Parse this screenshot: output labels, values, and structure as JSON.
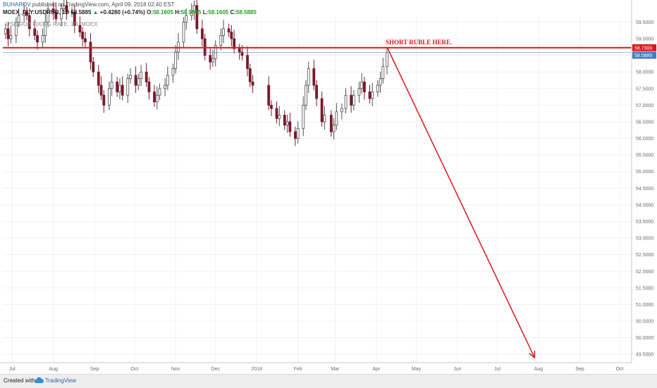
{
  "header": {
    "author": "BUHAROV",
    "published": "published on TradingView.com, April 09, 2018 02:40 EST"
  },
  "legend": {
    "symbol": "MOEX_DLY:USDRUB, 1D",
    "last": "58.5885",
    "change": "+0.4280 (+0.74%)",
    "o_label": "O:",
    "o": "58.1605",
    "h_label": "H:",
    "h": "58.5885",
    "l_label": "L:",
    "l": "58.1605",
    "c_label": "C:",
    "c": "58.5885"
  },
  "watermark": "USD/RUB FIXING RATE, 1D, MOEX",
  "footer": {
    "created": "Created with",
    "brand": "TradingView"
  },
  "chart_data": {
    "type": "candlestick",
    "ylim": [
      49.25,
      59.7
    ],
    "y_ticks": [
      "59.5000",
      "59.0000",
      "58.5000",
      "58.0000",
      "57.5000",
      "57.0000",
      "56.5000",
      "56.0000",
      "55.5000",
      "55.0000",
      "54.5000",
      "54.0000",
      "53.5000",
      "53.0000",
      "52.5000",
      "52.0000",
      "51.5000",
      "51.0000",
      "50.5000",
      "50.0000",
      "49.5000"
    ],
    "y_tick_values": [
      59.5,
      59.0,
      58.5,
      58.0,
      57.5,
      57.0,
      56.5,
      56.0,
      55.5,
      55.0,
      54.5,
      54.0,
      53.5,
      53.0,
      52.5,
      52.0,
      51.5,
      51.0,
      50.5,
      50.0,
      49.5
    ],
    "x_ticks": [
      "Jul",
      "Aug",
      "Sep",
      "Oct",
      "Nov",
      "Dec",
      "2018",
      "Feb",
      "Mar",
      "Apr",
      "May",
      "Jun",
      "Jul",
      "Aug",
      "Sep",
      "Oct"
    ],
    "x_tick_dates": [
      "2017-07-01",
      "2017-08-01",
      "2017-09-01",
      "2017-10-01",
      "2017-11-01",
      "2017-12-01",
      "2018-01-01",
      "2018-02-01",
      "2018-03-01",
      "2018-04-01",
      "2018-05-01",
      "2018-06-01",
      "2018-07-01",
      "2018-08-01",
      "2018-09-01",
      "2018-10-01"
    ],
    "x_range": [
      "2017-06-24",
      "2018-10-10"
    ],
    "closes": [
      [
        "2017-06-26",
        59.3
      ],
      [
        "2017-06-28",
        59.0
      ],
      [
        "2017-06-30",
        59.1
      ],
      [
        "2017-07-04",
        59.5
      ],
      [
        "2017-07-06",
        59.7
      ],
      [
        "2017-07-10",
        59.8
      ],
      [
        "2017-07-12",
        59.7
      ],
      [
        "2017-07-14",
        59.3
      ],
      [
        "2017-07-18",
        59.1
      ],
      [
        "2017-07-20",
        58.9
      ],
      [
        "2017-07-24",
        59.1
      ],
      [
        "2017-07-26",
        59.5
      ],
      [
        "2017-07-28",
        59.9
      ],
      [
        "2017-08-01",
        59.8
      ],
      [
        "2017-08-03",
        59.6
      ],
      [
        "2017-08-07",
        59.9
      ],
      [
        "2017-08-09",
        60.0
      ],
      [
        "2017-08-11",
        59.8
      ],
      [
        "2017-08-15",
        59.8
      ],
      [
        "2017-08-17",
        59.4
      ],
      [
        "2017-08-21",
        59.2
      ],
      [
        "2017-08-23",
        59.0
      ],
      [
        "2017-08-25",
        58.9
      ],
      [
        "2017-08-29",
        58.3
      ],
      [
        "2017-08-31",
        58.0
      ],
      [
        "2017-09-04",
        57.6
      ],
      [
        "2017-09-06",
        57.3
      ],
      [
        "2017-09-08",
        57.0
      ],
      [
        "2017-09-12",
        57.5
      ],
      [
        "2017-09-14",
        57.7
      ],
      [
        "2017-09-18",
        57.4
      ],
      [
        "2017-09-20",
        57.6
      ],
      [
        "2017-09-22",
        57.3
      ],
      [
        "2017-09-26",
        57.8
      ],
      [
        "2017-09-28",
        57.9
      ],
      [
        "2017-10-02",
        57.6
      ],
      [
        "2017-10-04",
        57.8
      ],
      [
        "2017-10-06",
        58.0
      ],
      [
        "2017-10-10",
        57.7
      ],
      [
        "2017-10-12",
        57.4
      ],
      [
        "2017-10-16",
        57.1
      ],
      [
        "2017-10-18",
        57.3
      ],
      [
        "2017-10-20",
        57.5
      ],
      [
        "2017-10-24",
        57.6
      ],
      [
        "2017-10-26",
        57.9
      ],
      [
        "2017-10-30",
        58.1
      ],
      [
        "2017-11-01",
        58.6
      ],
      [
        "2017-11-03",
        58.9
      ],
      [
        "2017-11-07",
        59.5
      ],
      [
        "2017-11-09",
        59.7
      ],
      [
        "2017-11-13",
        59.8
      ],
      [
        "2017-11-15",
        60.0
      ],
      [
        "2017-11-17",
        59.3
      ],
      [
        "2017-11-21",
        59.0
      ],
      [
        "2017-11-23",
        58.5
      ],
      [
        "2017-11-27",
        58.3
      ],
      [
        "2017-11-29",
        58.4
      ],
      [
        "2017-12-01",
        58.8
      ],
      [
        "2017-12-05",
        59.1
      ],
      [
        "2017-12-07",
        59.3
      ],
      [
        "2017-12-11",
        59.2
      ],
      [
        "2017-12-13",
        59.0
      ],
      [
        "2017-12-15",
        58.7
      ],
      [
        "2017-12-19",
        58.6
      ],
      [
        "2017-12-21",
        58.5
      ],
      [
        "2017-12-25",
        58.1
      ],
      [
        "2017-12-27",
        57.7
      ],
      [
        "2017-12-29",
        57.6
      ],
      [
        "2018-01-10",
        57.0
      ],
      [
        "2018-01-12",
        56.9
      ],
      [
        "2018-01-16",
        56.6
      ],
      [
        "2018-01-18",
        56.7
      ],
      [
        "2018-01-22",
        56.4
      ],
      [
        "2018-01-24",
        56.5
      ],
      [
        "2018-01-26",
        56.2
      ],
      [
        "2018-01-30",
        56.0
      ],
      [
        "2018-02-01",
        56.3
      ],
      [
        "2018-02-05",
        57.0
      ],
      [
        "2018-02-07",
        57.6
      ],
      [
        "2018-02-09",
        58.1
      ],
      [
        "2018-02-13",
        57.6
      ],
      [
        "2018-02-15",
        57.2
      ],
      [
        "2018-02-19",
        56.5
      ],
      [
        "2018-02-21",
        56.7
      ],
      [
        "2018-02-26",
        56.2
      ],
      [
        "2018-02-28",
        56.4
      ],
      [
        "2018-03-02",
        56.8
      ],
      [
        "2018-03-06",
        56.9
      ],
      [
        "2018-03-09",
        57.3
      ],
      [
        "2018-03-13",
        57.0
      ],
      [
        "2018-03-15",
        57.3
      ],
      [
        "2018-03-19",
        57.5
      ],
      [
        "2018-03-21",
        57.7
      ],
      [
        "2018-03-23",
        57.4
      ],
      [
        "2018-03-27",
        57.2
      ],
      [
        "2018-03-29",
        57.4
      ],
      [
        "2018-04-02",
        57.6
      ],
      [
        "2018-04-04",
        57.8
      ],
      [
        "2018-04-06",
        58.16
      ],
      [
        "2018-04-09",
        58.5885
      ]
    ],
    "resistance": {
      "value": 58.73,
      "label": "58.7300"
    },
    "last_price": {
      "value": 58.5885,
      "label": "58.5885"
    },
    "annotation": "SHORT RUBLE HERE.",
    "arrow": {
      "from": [
        "2018-04-09",
        58.75
      ],
      "to": [
        "2018-07-29",
        49.4
      ]
    },
    "colors": {
      "up": "#4f4f4f",
      "down": "#7a1a2a",
      "resistance": "#d9181b",
      "arrow": "#d9181b",
      "last_price": "#4a76c0",
      "grid": "#eef1f5",
      "axis": "#c9c9c9"
    }
  }
}
